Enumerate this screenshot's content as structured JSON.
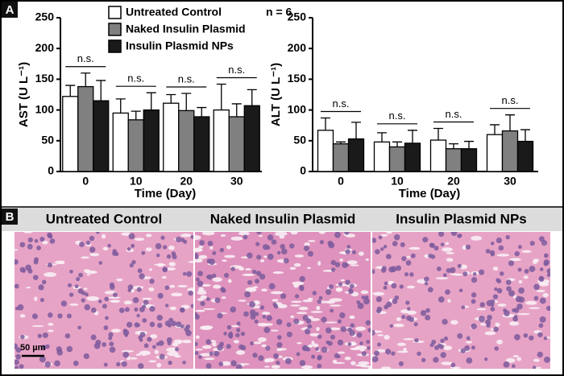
{
  "chart_data": [
    {
      "type": "bar",
      "panel_label": "A",
      "note": "n = 6",
      "ylabel": "AST (U L⁻¹)",
      "xlabel": "Time (Day)",
      "categories": [
        "0",
        "10",
        "20",
        "30"
      ],
      "series": [
        {
          "name": "Untreated Control",
          "color": "#ffffff",
          "values": [
            122,
            95,
            111,
            100
          ],
          "errors": [
            18,
            23,
            14,
            42
          ]
        },
        {
          "name": "Naked Insulin Plasmid",
          "color": "#808080",
          "values": [
            138,
            84,
            99,
            89
          ],
          "errors": [
            22,
            14,
            28,
            21
          ]
        },
        {
          "name": "Insulin Plasmid NPs",
          "color": "#1a1a1a",
          "values": [
            115,
            100,
            89,
            107
          ],
          "errors": [
            33,
            28,
            15,
            26
          ]
        }
      ],
      "annotations": [
        "n.s.",
        "n.s.",
        "n.s.",
        "n.s."
      ],
      "ylim": [
        0,
        250
      ],
      "yticks": [
        0,
        50,
        100,
        150,
        200,
        250
      ]
    },
    {
      "type": "bar",
      "ylabel": "ALT (U L⁻¹)",
      "xlabel": "Time (Day)",
      "categories": [
        "0",
        "10",
        "20",
        "30"
      ],
      "series": [
        {
          "color": "#ffffff",
          "values": [
            67,
            48,
            51,
            60
          ],
          "errors": [
            20,
            15,
            19,
            16
          ]
        },
        {
          "color": "#808080",
          "values": [
            45,
            40,
            37,
            66
          ],
          "errors": [
            3,
            8,
            8,
            26
          ]
        },
        {
          "color": "#1a1a1a",
          "values": [
            53,
            46,
            37,
            49
          ],
          "errors": [
            27,
            21,
            12,
            19
          ]
        }
      ],
      "annotations": [
        "n.s.",
        "n.s.",
        "n.s.",
        "n.s."
      ],
      "ylim": [
        0,
        250
      ],
      "yticks": [
        0,
        50,
        100,
        150,
        200,
        250
      ]
    }
  ],
  "panel_b": {
    "label": "B",
    "images": [
      {
        "title": "Untreated Control"
      },
      {
        "title": "Naked Insulin Plasmid"
      },
      {
        "title": "Insulin Plasmid NPs"
      }
    ],
    "scale_bar": "50 µm"
  }
}
